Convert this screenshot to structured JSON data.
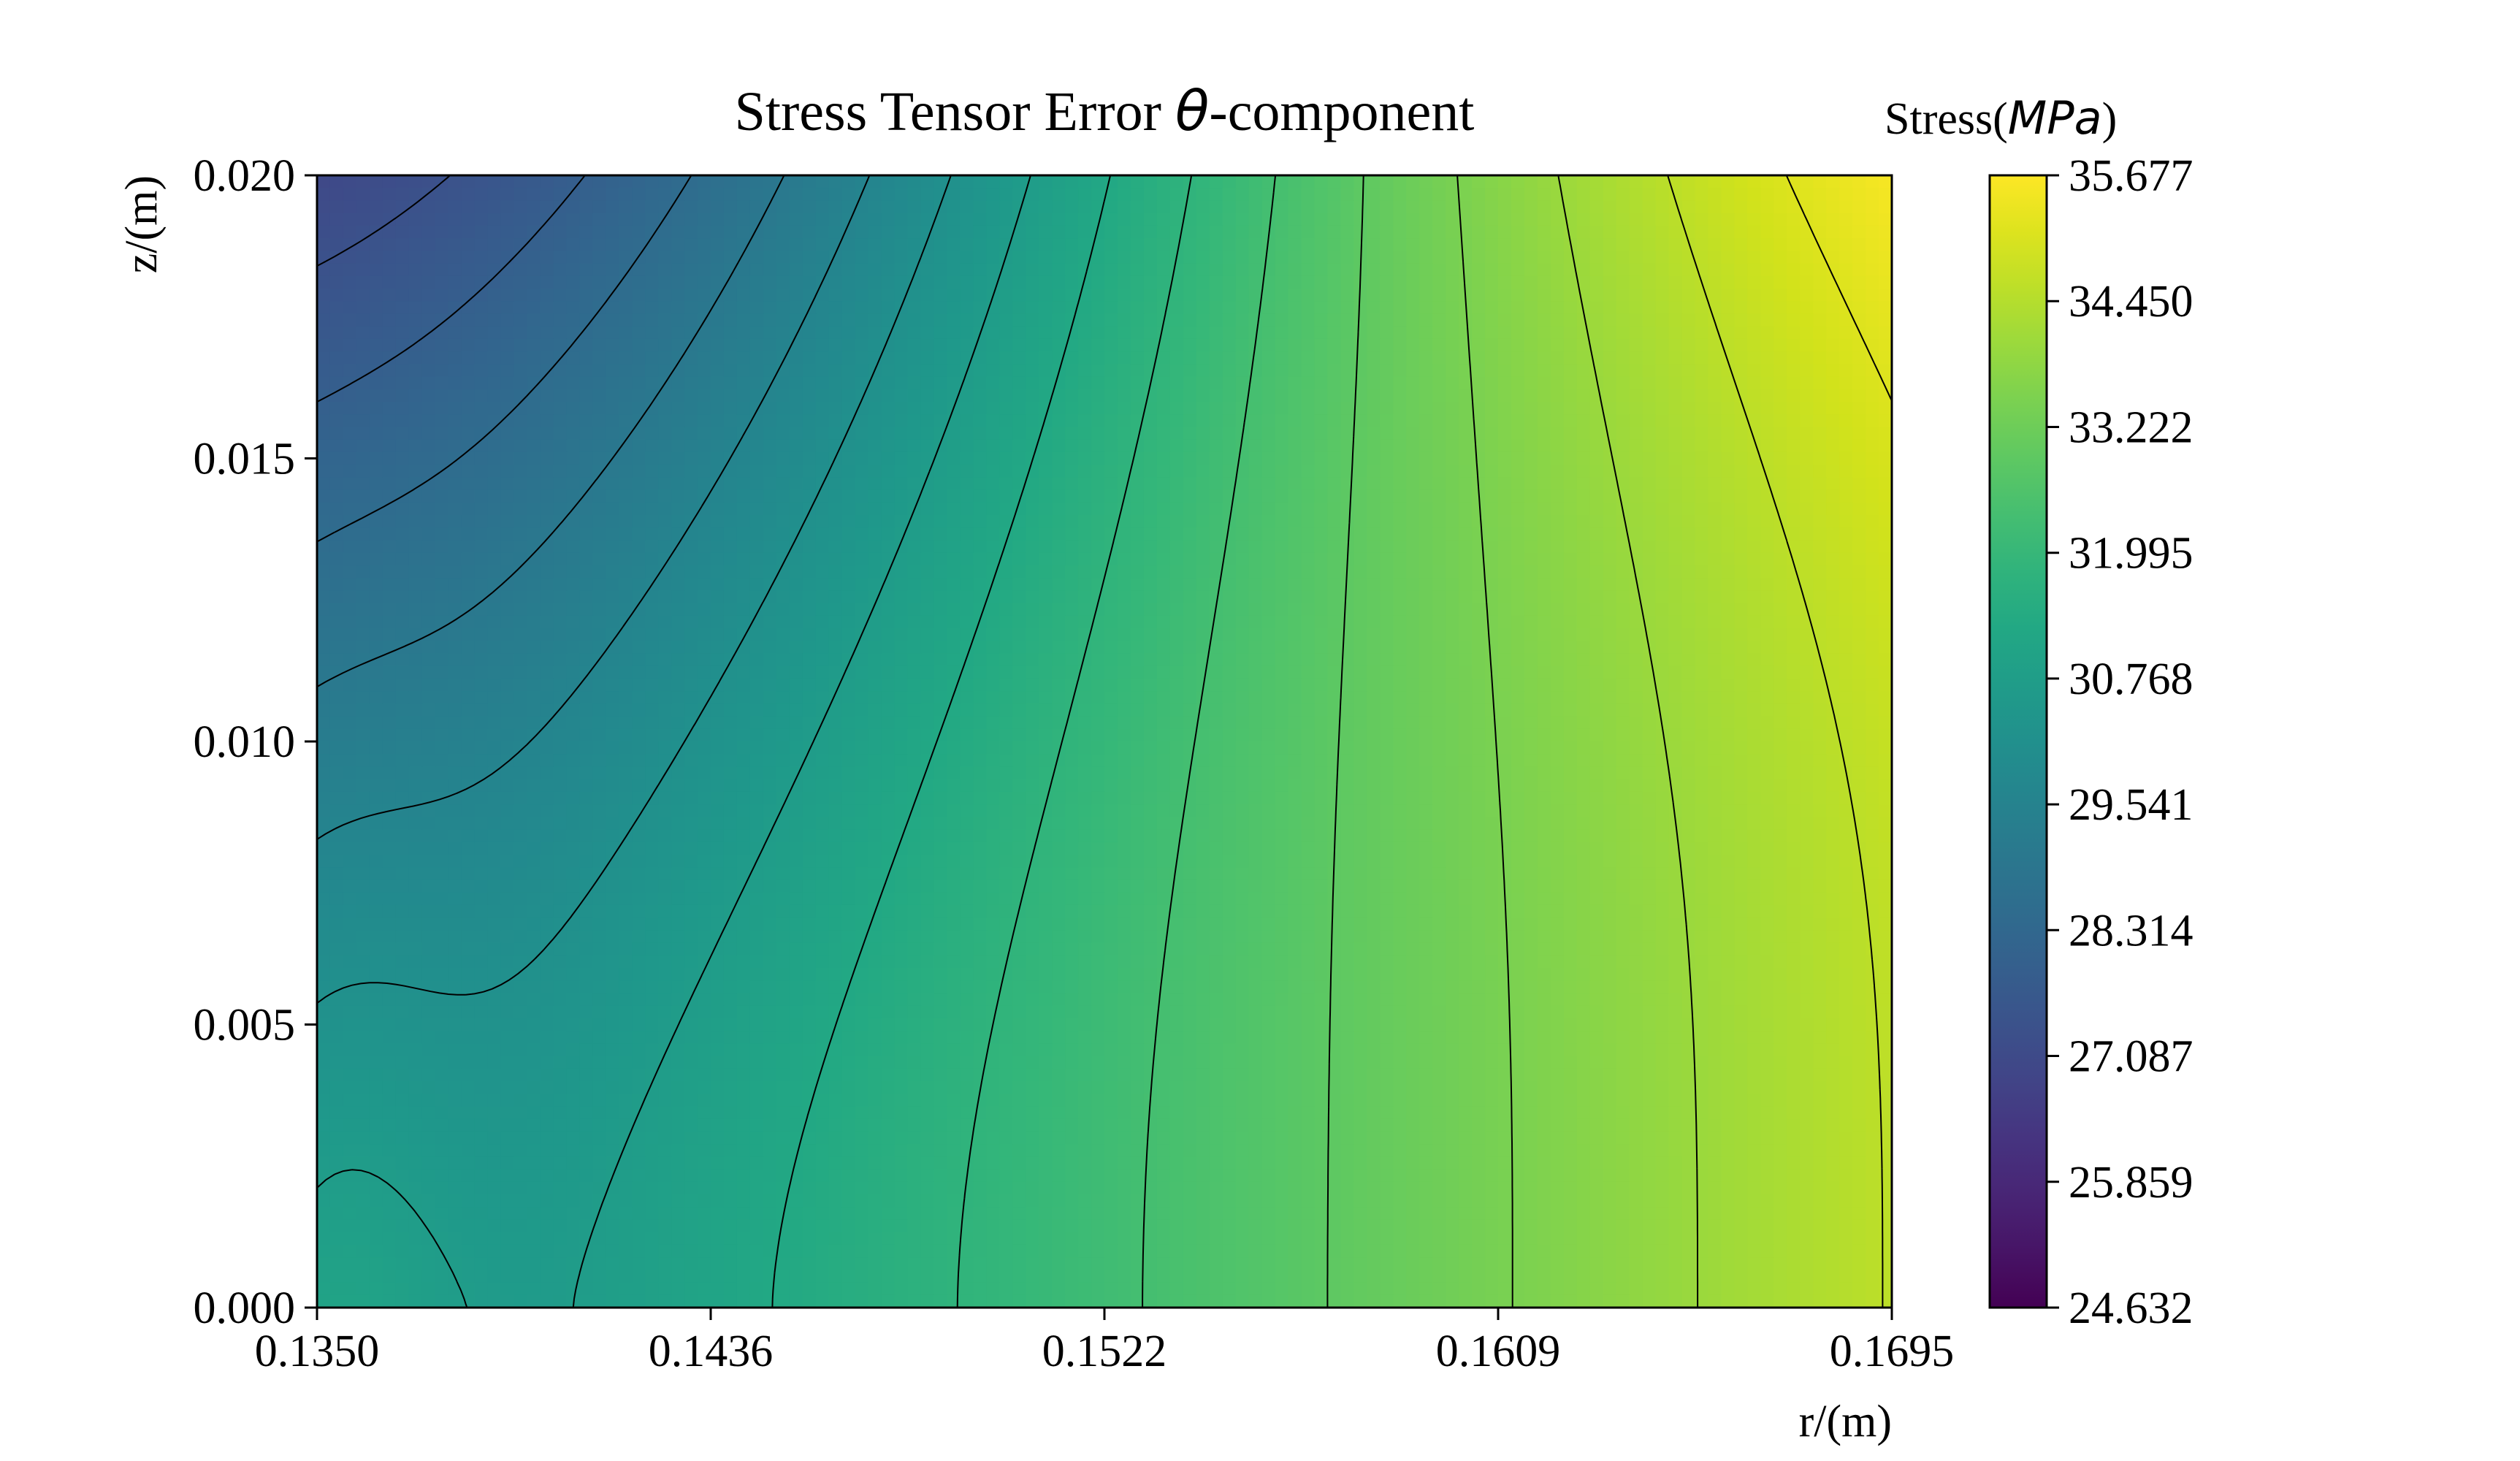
{
  "chart_data": {
    "type": "heatmap",
    "title": {
      "prefix": "Stress Tensor Error ",
      "symbol": "θ",
      "suffix": "-component"
    },
    "xlabel": "r/(m)",
    "ylabel": "z/(m)",
    "xlim": [
      0.135,
      0.1695
    ],
    "ylim": [
      0.0,
      0.02
    ],
    "xticks": [
      "0.1350",
      "0.1436",
      "0.1522",
      "0.1609",
      "0.1695"
    ],
    "yticks": [
      "0.000",
      "0.005",
      "0.010",
      "0.015",
      "0.020"
    ],
    "colormap": "viridis",
    "colorbar": {
      "label_prefix": "Stress(",
      "label_unit": "MPa",
      "label_suffix": ")",
      "min": 24.632,
      "max": 35.677,
      "ticks": [
        "24.632",
        "25.859",
        "27.087",
        "28.314",
        "29.541",
        "30.768",
        "31.995",
        "33.222",
        "34.450",
        "35.677"
      ]
    },
    "contour_lines": true,
    "grid": false,
    "colors": {
      "low": "#440154",
      "high": "#fde725",
      "contour": "#000000",
      "axes": "#000000"
    }
  }
}
